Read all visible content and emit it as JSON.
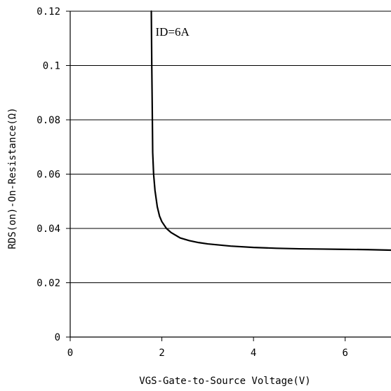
{
  "chart_data": {
    "type": "line",
    "title": "",
    "xlabel": "VGS-Gate-to-Source Voltage(V)",
    "ylabel": "RDS(on)-On-Resistance(Ω)",
    "xlim": [
      0,
      7
    ],
    "ylim": [
      0,
      0.12
    ],
    "x_ticks": [
      0,
      2,
      4,
      6
    ],
    "x_tick_labels": [
      "0",
      "2",
      "4",
      "6"
    ],
    "y_ticks": [
      0,
      0.02,
      0.04,
      0.06,
      0.08,
      0.1,
      0.12
    ],
    "y_tick_labels": [
      "0",
      "0.02",
      "0.04",
      "0.06",
      "0.08",
      "0.1",
      "0.12"
    ],
    "grid": "horizontal",
    "legend": "none",
    "line_color": "#000000",
    "annotations": [
      {
        "text": "ID=6A",
        "x": 1.8,
        "y": 0.111
      }
    ],
    "series": [
      {
        "x": [
          1.77,
          1.78,
          1.79,
          1.8,
          1.82,
          1.85,
          1.9,
          1.95,
          2.0,
          2.1,
          2.2,
          2.4,
          2.6,
          2.8,
          3.0,
          3.5,
          4.0,
          4.5,
          5.0,
          5.5,
          6.0,
          6.5,
          7.0
        ],
        "values": [
          0.12,
          0.1,
          0.085,
          0.068,
          0.06,
          0.054,
          0.048,
          0.0445,
          0.0425,
          0.04,
          0.0385,
          0.0365,
          0.0355,
          0.0348,
          0.0343,
          0.0335,
          0.033,
          0.0327,
          0.0325,
          0.0324,
          0.0323,
          0.0322,
          0.032
        ]
      }
    ]
  }
}
